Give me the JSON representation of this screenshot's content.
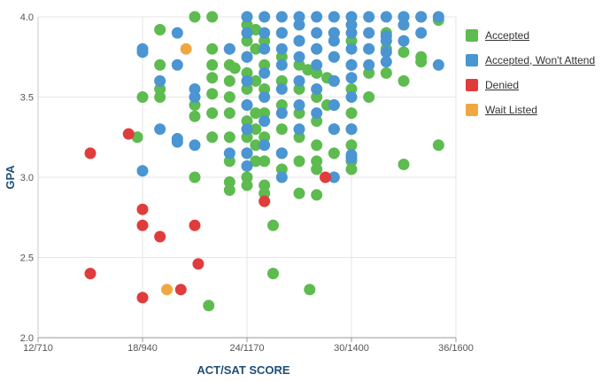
{
  "chart_data": {
    "type": "scatter",
    "xlabel": "ACT/SAT SCORE",
    "ylabel": "GPA",
    "xlim": [
      12,
      36
    ],
    "ylim": [
      2.0,
      4.0
    ],
    "x_ticks": [
      12,
      18,
      24,
      30,
      36
    ],
    "x_tick_labels": [
      "12/710",
      "18/940",
      "24/1170",
      "30/1400",
      "36/1600"
    ],
    "y_ticks": [
      2.0,
      2.5,
      3.0,
      3.5,
      4.0
    ],
    "y_tick_labels": [
      "2.0",
      "2.5",
      "3.0",
      "3.5",
      "4.0"
    ],
    "grid": true,
    "legend_position": "right",
    "series": [
      {
        "name": "Accepted",
        "color": "#5dbb4f",
        "points": [
          [
            21,
            4.0
          ],
          [
            22,
            4.0
          ],
          [
            19,
            3.92
          ],
          [
            19,
            3.7
          ],
          [
            19,
            3.55
          ],
          [
            18,
            3.5
          ],
          [
            19,
            3.5
          ],
          [
            17.7,
            3.25
          ],
          [
            21,
            3.45
          ],
          [
            21,
            3.38
          ],
          [
            21,
            3.0
          ],
          [
            22,
            3.8
          ],
          [
            22,
            3.7
          ],
          [
            22,
            3.62
          ],
          [
            22,
            3.52
          ],
          [
            22,
            3.4
          ],
          [
            22,
            3.25
          ],
          [
            21.8,
            2.2
          ],
          [
            23,
            3.8
          ],
          [
            23,
            3.7
          ],
          [
            23,
            3.6
          ],
          [
            23,
            3.5
          ],
          [
            23,
            3.4
          ],
          [
            23,
            3.25
          ],
          [
            23,
            3.1
          ],
          [
            23,
            2.97
          ],
          [
            23,
            2.92
          ],
          [
            23.3,
            3.68
          ],
          [
            24,
            3.95
          ],
          [
            24,
            3.85
          ],
          [
            24,
            3.75
          ],
          [
            24,
            3.65
          ],
          [
            24,
            3.55
          ],
          [
            24,
            3.45
          ],
          [
            24,
            3.35
          ],
          [
            24,
            3.25
          ],
          [
            24,
            3.15
          ],
          [
            24,
            3.0
          ],
          [
            24,
            2.95
          ],
          [
            24.5,
            3.92
          ],
          [
            24.5,
            3.8
          ],
          [
            24.5,
            3.6
          ],
          [
            24.5,
            3.4
          ],
          [
            24.5,
            3.3
          ],
          [
            24.5,
            3.2
          ],
          [
            24.5,
            3.1
          ],
          [
            25,
            3.85
          ],
          [
            25,
            3.7
          ],
          [
            25,
            3.55
          ],
          [
            25,
            3.4
          ],
          [
            25,
            3.25
          ],
          [
            25,
            3.1
          ],
          [
            25,
            2.95
          ],
          [
            25,
            2.9
          ],
          [
            25.5,
            2.7
          ],
          [
            25.5,
            2.4
          ],
          [
            26,
            3.9
          ],
          [
            26,
            3.75
          ],
          [
            26,
            3.6
          ],
          [
            26,
            3.45
          ],
          [
            26,
            3.3
          ],
          [
            26,
            3.15
          ],
          [
            26,
            3.05
          ],
          [
            27,
            3.85
          ],
          [
            27,
            3.7
          ],
          [
            27,
            3.55
          ],
          [
            27,
            3.4
          ],
          [
            27,
            3.25
          ],
          [
            27,
            3.1
          ],
          [
            27,
            2.9
          ],
          [
            27.5,
            3.67
          ],
          [
            27.6,
            2.3
          ],
          [
            28,
            3.8
          ],
          [
            28,
            3.65
          ],
          [
            28,
            3.5
          ],
          [
            28,
            3.35
          ],
          [
            28,
            3.2
          ],
          [
            28,
            3.1
          ],
          [
            28,
            3.05
          ],
          [
            28,
            2.89
          ],
          [
            28.6,
            3.62
          ],
          [
            28.6,
            3.45
          ],
          [
            29,
            3.9
          ],
          [
            29,
            3.75
          ],
          [
            29,
            3.6
          ],
          [
            29,
            3.45
          ],
          [
            29,
            3.3
          ],
          [
            29,
            3.15
          ],
          [
            30,
            3.85
          ],
          [
            30,
            3.7
          ],
          [
            30,
            3.55
          ],
          [
            30,
            3.4
          ],
          [
            30,
            3.3
          ],
          [
            30,
            3.2
          ],
          [
            30,
            3.1
          ],
          [
            30,
            3.05
          ],
          [
            31,
            3.8
          ],
          [
            31,
            3.65
          ],
          [
            31,
            3.5
          ],
          [
            32,
            3.9
          ],
          [
            32,
            3.8
          ],
          [
            32,
            3.65
          ],
          [
            33,
            4.0
          ],
          [
            33,
            3.78
          ],
          [
            33,
            3.6
          ],
          [
            33,
            3.08
          ],
          [
            34,
            4.0
          ],
          [
            34,
            3.75
          ],
          [
            34,
            3.72
          ],
          [
            35,
            3.98
          ],
          [
            35,
            3.2
          ]
        ]
      },
      {
        "name": "Accepted, Won't Attend",
        "color": "#4a95d2",
        "points": [
          [
            18,
            3.8
          ],
          [
            18,
            3.78
          ],
          [
            19,
            3.6
          ],
          [
            19,
            3.3
          ],
          [
            18,
            3.04
          ],
          [
            20,
            3.9
          ],
          [
            20,
            3.7
          ],
          [
            20,
            3.24
          ],
          [
            20,
            3.22
          ],
          [
            21,
            3.55
          ],
          [
            21,
            3.5
          ],
          [
            21,
            3.2
          ],
          [
            23,
            3.8
          ],
          [
            23,
            3.15
          ],
          [
            24,
            4.0
          ],
          [
            24,
            3.9
          ],
          [
            24,
            3.75
          ],
          [
            24,
            3.6
          ],
          [
            24,
            3.45
          ],
          [
            24,
            3.3
          ],
          [
            24,
            3.15
          ],
          [
            24,
            3.07
          ],
          [
            25,
            4.0
          ],
          [
            25,
            3.9
          ],
          [
            25,
            3.8
          ],
          [
            25,
            3.65
          ],
          [
            25,
            3.5
          ],
          [
            25,
            3.35
          ],
          [
            25,
            3.2
          ],
          [
            26,
            4.0
          ],
          [
            26,
            3.9
          ],
          [
            26,
            3.8
          ],
          [
            26,
            3.7
          ],
          [
            26,
            3.55
          ],
          [
            26,
            3.4
          ],
          [
            26,
            3.15
          ],
          [
            26,
            3.0
          ],
          [
            27,
            4.0
          ],
          [
            27,
            3.95
          ],
          [
            27,
            3.85
          ],
          [
            27,
            3.75
          ],
          [
            27,
            3.6
          ],
          [
            27,
            3.45
          ],
          [
            27,
            3.3
          ],
          [
            28,
            4.0
          ],
          [
            28,
            3.9
          ],
          [
            28,
            3.8
          ],
          [
            28,
            3.7
          ],
          [
            28,
            3.55
          ],
          [
            28,
            3.4
          ],
          [
            29,
            4.0
          ],
          [
            29,
            3.9
          ],
          [
            29,
            3.85
          ],
          [
            29,
            3.75
          ],
          [
            29,
            3.6
          ],
          [
            29,
            3.45
          ],
          [
            29,
            3.3
          ],
          [
            29,
            3.0
          ],
          [
            30,
            4.0
          ],
          [
            30,
            3.95
          ],
          [
            30,
            3.9
          ],
          [
            30,
            3.8
          ],
          [
            30,
            3.7
          ],
          [
            30,
            3.62
          ],
          [
            30,
            3.5
          ],
          [
            30,
            3.3
          ],
          [
            30,
            3.14
          ],
          [
            30,
            3.12
          ],
          [
            31,
            4.0
          ],
          [
            31,
            3.9
          ],
          [
            31,
            3.8
          ],
          [
            31,
            3.7
          ],
          [
            32,
            4.0
          ],
          [
            32,
            3.88
          ],
          [
            32,
            3.85
          ],
          [
            32,
            3.78
          ],
          [
            32,
            3.72
          ],
          [
            33,
            4.0
          ],
          [
            33,
            3.95
          ],
          [
            33,
            3.85
          ],
          [
            34,
            4.0
          ],
          [
            34,
            3.9
          ],
          [
            35,
            4.0
          ],
          [
            35,
            3.7
          ]
        ]
      },
      {
        "name": "Denied",
        "color": "#e03c3c",
        "points": [
          [
            15,
            3.15
          ],
          [
            17.2,
            3.27
          ],
          [
            18,
            2.8
          ],
          [
            18,
            2.7
          ],
          [
            19,
            2.63
          ],
          [
            18,
            2.25
          ],
          [
            15,
            2.4
          ],
          [
            21,
            2.7
          ],
          [
            21.2,
            2.46
          ],
          [
            20.2,
            2.3
          ],
          [
            25,
            2.85
          ],
          [
            28.5,
            3.0
          ]
        ]
      },
      {
        "name": "Wait Listed",
        "color": "#f0a742",
        "points": [
          [
            20.5,
            3.8
          ],
          [
            19.4,
            2.3
          ]
        ]
      }
    ]
  }
}
